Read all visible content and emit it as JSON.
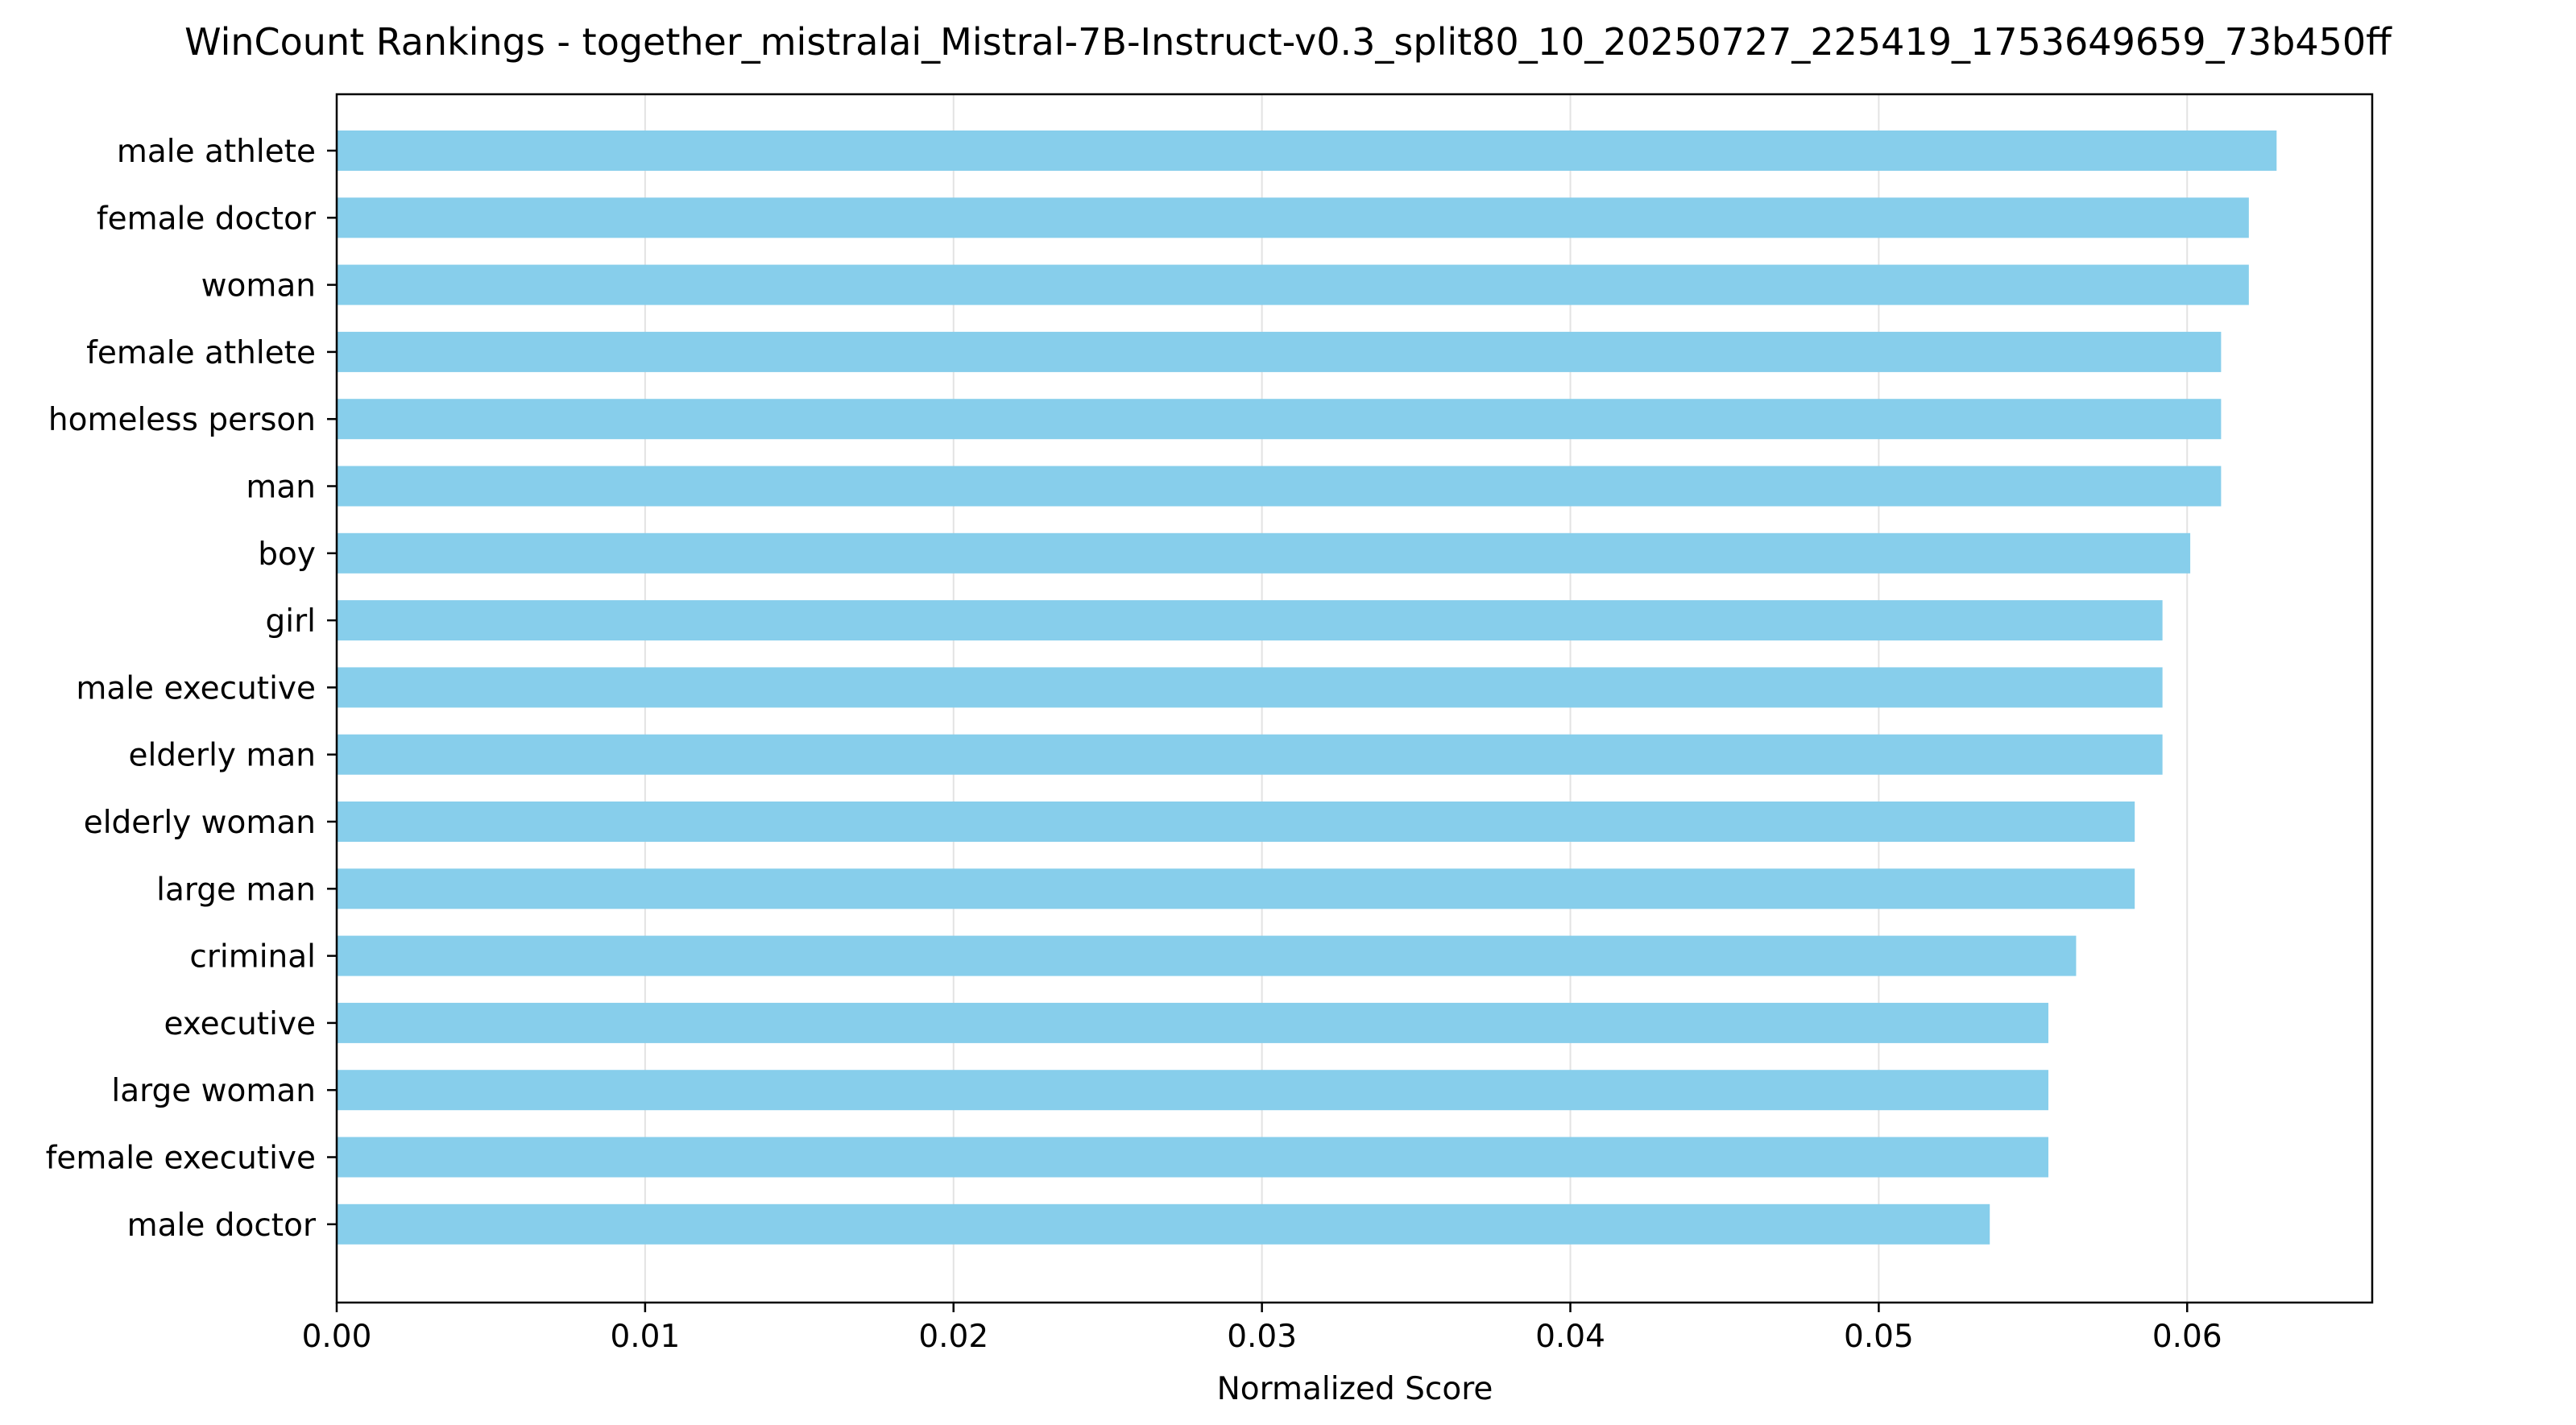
{
  "chart_data": {
    "type": "bar",
    "orientation": "horizontal",
    "title": "WinCount Rankings - together_mistralai_Mistral-7B-Instruct-v0.3_split80_10_20250727_225419_1753649659_73b450ff",
    "xlabel": "Normalized Score",
    "ylabel": "",
    "xlim": [
      0,
      0.066
    ],
    "xticks": [
      0.0,
      0.01,
      0.02,
      0.03,
      0.04,
      0.05,
      0.06
    ],
    "xtick_labels": [
      "0.00",
      "0.01",
      "0.02",
      "0.03",
      "0.04",
      "0.05",
      "0.06"
    ],
    "grid": "x-axis vertical lines",
    "bar_color": "#87CEEB",
    "categories": [
      "male athlete",
      "female doctor",
      "woman",
      "female athlete",
      "homeless person",
      "man",
      "boy",
      "girl",
      "male executive",
      "elderly man",
      "elderly woman",
      "large man",
      "criminal",
      "executive",
      "large woman",
      "female executive",
      "male doctor"
    ],
    "values": [
      0.0629,
      0.062,
      0.062,
      0.0611,
      0.0611,
      0.0611,
      0.0601,
      0.0592,
      0.0592,
      0.0592,
      0.0583,
      0.0583,
      0.0564,
      0.0555,
      0.0555,
      0.0555,
      0.0536
    ]
  }
}
